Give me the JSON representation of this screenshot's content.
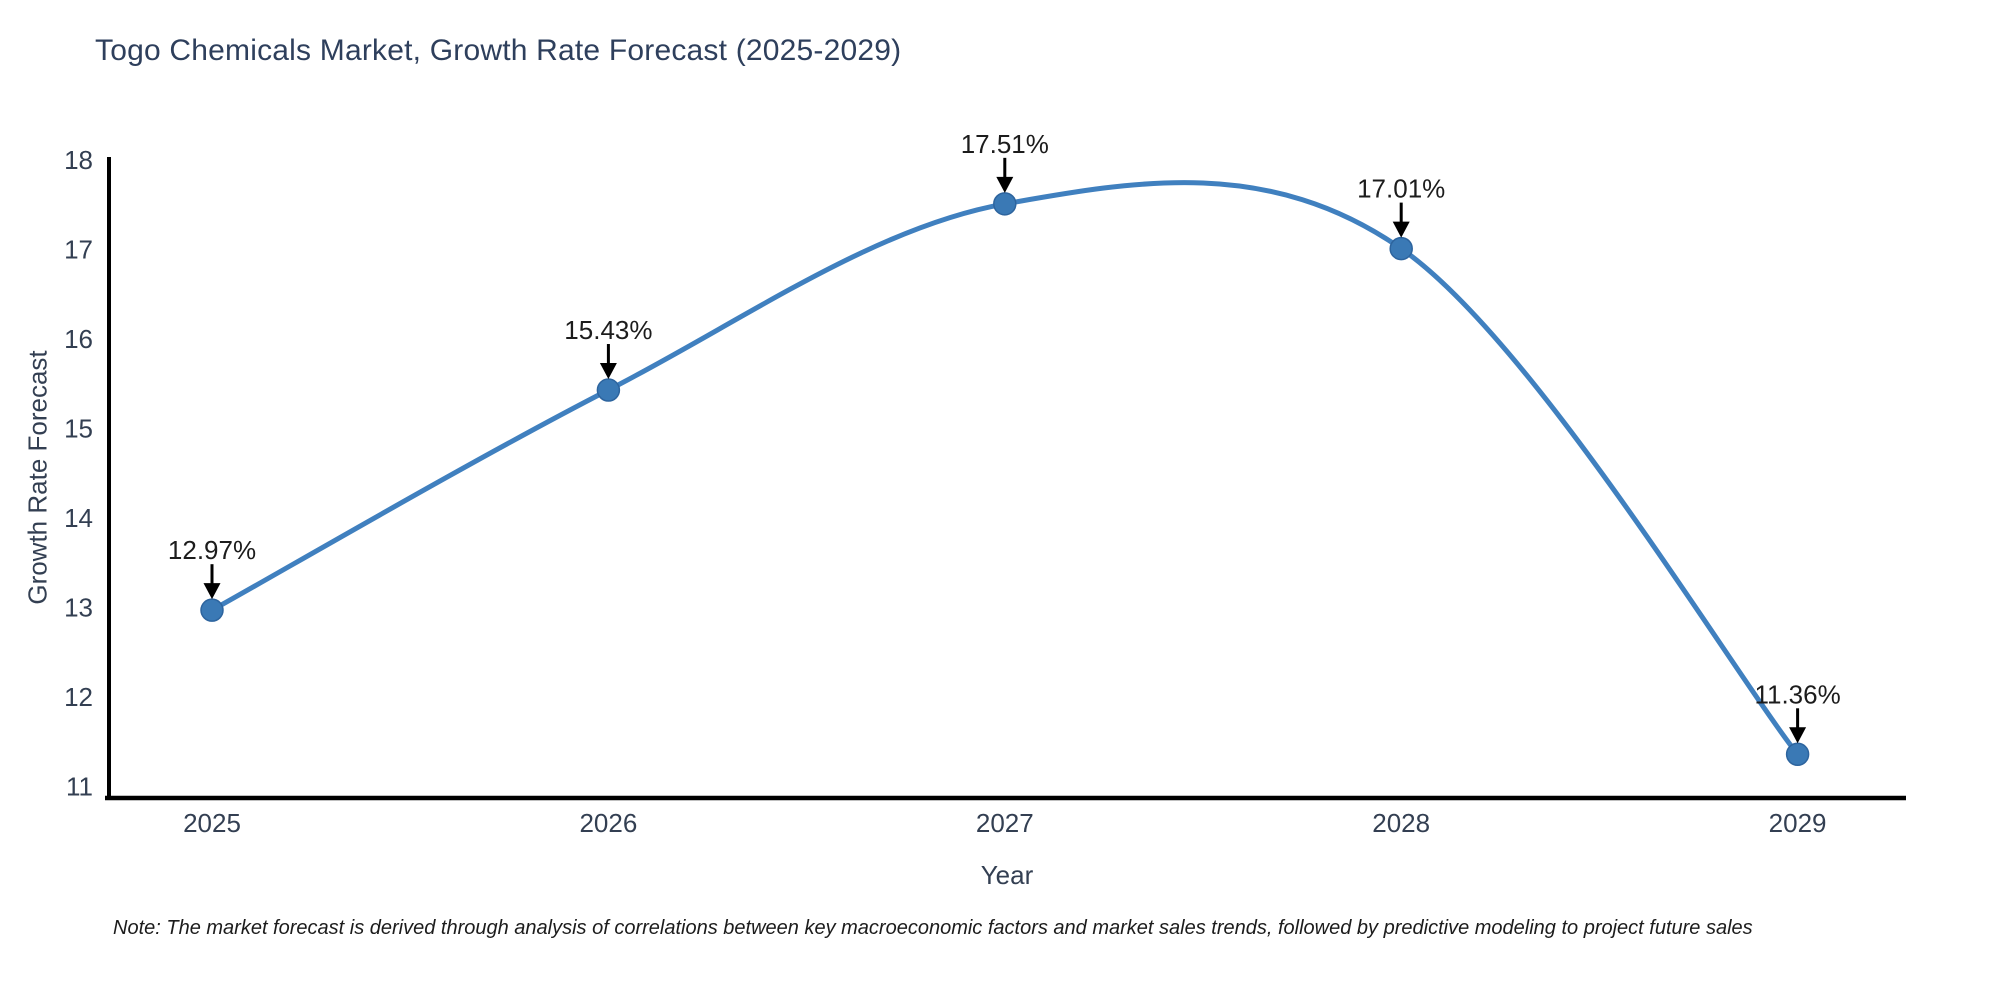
{
  "title": "Togo Chemicals Market, Growth Rate Forecast (2025-2029)",
  "x_axis_label": "Year",
  "y_axis_label": "Growth Rate Forecast",
  "note": "Note: The market forecast is derived through analysis of correlations between key macroeconomic factors and market sales trends, followed by predictive modeling to project future sales",
  "colors": {
    "line": "#4080bf",
    "marker_fill": "#3a79b5",
    "marker_edge": "#2d649e",
    "title_text": "#2e3f5c",
    "tick_text": "#333f52",
    "axis_spine": "#000000",
    "annotation_text": "#1c1c1c",
    "annotation_arrow": "#000000",
    "note_text": "#1c1c1c"
  },
  "chart_data": {
    "type": "line",
    "title": "Togo Chemicals Market, Growth Rate Forecast (2025-2029)",
    "xlabel": "Year",
    "ylabel": "Growth Rate Forecast",
    "categories": [
      "2025",
      "2026",
      "2027",
      "2028",
      "2029"
    ],
    "values": [
      12.97,
      15.43,
      17.51,
      17.01,
      11.36
    ],
    "point_labels": [
      "12.97%",
      "15.43%",
      "17.51%",
      "17.01%",
      "11.36%"
    ],
    "yticks": [
      11,
      12,
      13,
      14,
      15,
      16,
      17,
      18
    ],
    "ylim": [
      10.85,
      18.0
    ],
    "grid": false,
    "legend": false,
    "line_shape": "spline",
    "marker": "circle",
    "annotation_style": "value label above each point with downward black arrow"
  }
}
